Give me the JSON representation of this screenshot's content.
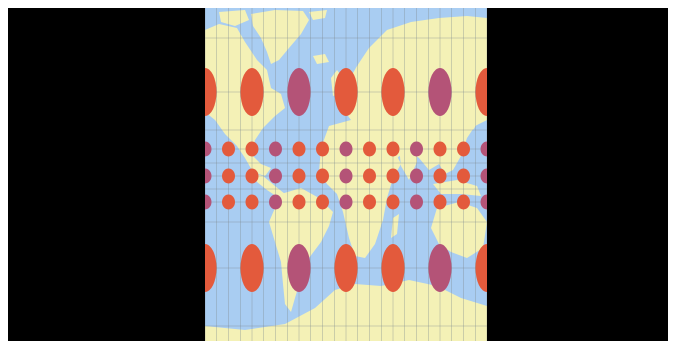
{
  "viewer": {
    "letterbox_color": "#000000"
  },
  "map": {
    "kind": "mercator-world-map-with-tissot-indicatrices",
    "colors": {
      "ocean": "#a9cdf2",
      "land": "#f4f1b6",
      "grid": "#7d8a8e",
      "indicatrix_red": "#e35a3c",
      "indicatrix_purple": "#b45377",
      "indicatrix_opacity": 0.82
    },
    "indicatrix_rows": [
      {
        "lat": 60,
        "size": "large"
      },
      {
        "lat": 20,
        "size": "small"
      },
      {
        "lat": 0,
        "size": "small"
      },
      {
        "lat": -20,
        "size": "small"
      },
      {
        "lat": -60,
        "size": "large"
      }
    ],
    "indicatrix_columns_large": 7,
    "indicatrix_columns_small": 13
  }
}
